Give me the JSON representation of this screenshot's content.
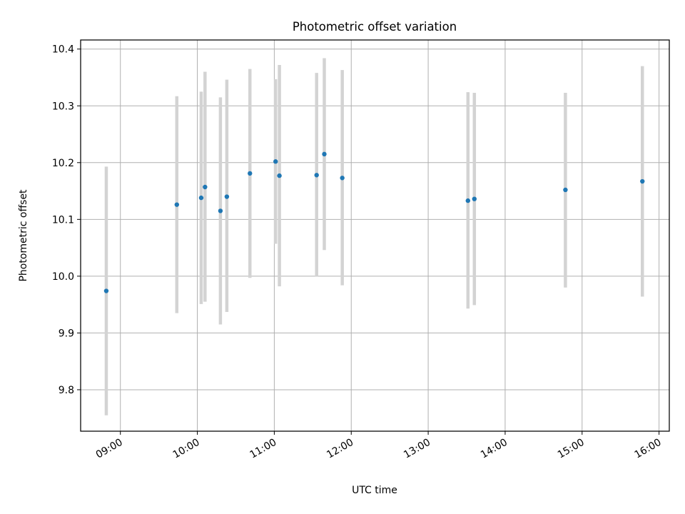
{
  "chart_data": {
    "type": "scatter",
    "title": "Photometric offset variation",
    "xlabel": "UTC time",
    "ylabel": "Photometric offset",
    "x_tick_labels": [
      "09:00",
      "10:00",
      "11:00",
      "12:00",
      "13:00",
      "14:00",
      "15:00",
      "16:00"
    ],
    "y_tick_labels": [
      "9.8",
      "9.9",
      "10.0",
      "10.1",
      "10.2",
      "10.3",
      "10.4"
    ],
    "xlim": [
      "08:29",
      "16:08"
    ],
    "ylim": [
      9.727,
      10.416
    ],
    "grid": true,
    "series": [
      {
        "marker_color": "#1f77b4",
        "errorbar_color": "#d3d3d3",
        "points": [
          {
            "x": "08:49",
            "y": 9.974,
            "ymin": 9.755,
            "ymax": 10.193
          },
          {
            "x": "09:44",
            "y": 10.126,
            "ymin": 9.935,
            "ymax": 10.317
          },
          {
            "x": "10:03",
            "y": 10.138,
            "ymin": 9.951,
            "ymax": 10.325
          },
          {
            "x": "10:06",
            "y": 10.157,
            "ymin": 9.955,
            "ymax": 10.36
          },
          {
            "x": "10:18",
            "y": 10.115,
            "ymin": 9.915,
            "ymax": 10.315
          },
          {
            "x": "10:23",
            "y": 10.14,
            "ymin": 9.937,
            "ymax": 10.346
          },
          {
            "x": "10:41",
            "y": 10.181,
            "ymin": 9.997,
            "ymax": 10.365
          },
          {
            "x": "11:01",
            "y": 10.202,
            "ymin": 10.057,
            "ymax": 10.347
          },
          {
            "x": "11:04",
            "y": 10.177,
            "ymin": 9.982,
            "ymax": 10.372
          },
          {
            "x": "11:33",
            "y": 10.178,
            "ymin": 9.999,
            "ymax": 10.358
          },
          {
            "x": "11:39",
            "y": 10.215,
            "ymin": 10.046,
            "ymax": 10.384
          },
          {
            "x": "11:53",
            "y": 10.173,
            "ymin": 9.984,
            "ymax": 10.363
          },
          {
            "x": "13:31",
            "y": 10.133,
            "ymin": 9.943,
            "ymax": 10.324
          },
          {
            "x": "13:36",
            "y": 10.136,
            "ymin": 9.949,
            "ymax": 10.323
          },
          {
            "x": "14:47",
            "y": 10.152,
            "ymin": 9.98,
            "ymax": 10.323
          },
          {
            "x": "15:47",
            "y": 10.167,
            "ymin": 9.964,
            "ymax": 10.37
          }
        ]
      }
    ]
  }
}
